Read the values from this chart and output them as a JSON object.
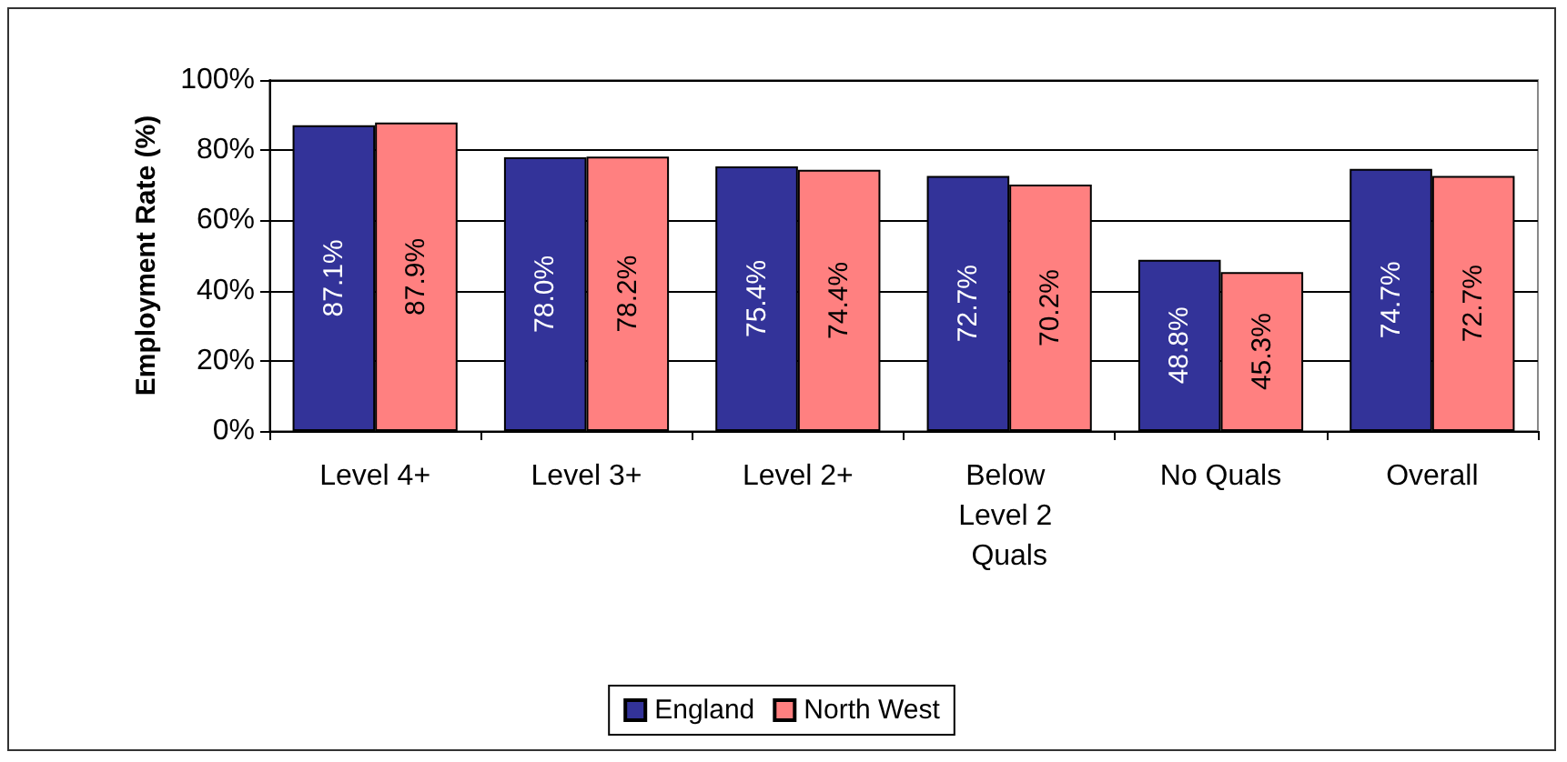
{
  "chart_data": {
    "type": "bar",
    "ylabel": "Employment Rate (%)",
    "categories": [
      "Level 4+",
      "Level 3+",
      "Level 2+",
      "Below Level 2 Quals",
      "No Quals",
      "Overall"
    ],
    "series": [
      {
        "name": "England",
        "color": "#333399",
        "values": [
          87.1,
          78.0,
          75.4,
          72.7,
          48.8,
          74.7
        ],
        "value_labels": [
          "87.1%",
          "78.0%",
          "75.4%",
          "72.7%",
          "48.8%",
          "74.7%"
        ]
      },
      {
        "name": "North West",
        "color": "#ff8080",
        "values": [
          87.9,
          78.2,
          74.4,
          70.2,
          45.3,
          72.7
        ],
        "value_labels": [
          "87.9%",
          "78.2%",
          "74.4%",
          "70.2%",
          "45.3%",
          "72.7%"
        ]
      }
    ],
    "ylim": [
      0,
      100
    ],
    "yticks": [
      {
        "value": 0,
        "label": "0%"
      },
      {
        "value": 20,
        "label": "20%"
      },
      {
        "value": 40,
        "label": "40%"
      },
      {
        "value": 60,
        "label": "60%"
      },
      {
        "value": 80,
        "label": "80%"
      },
      {
        "value": 100,
        "label": "100%"
      }
    ],
    "grid": "y",
    "legend": "bottom"
  }
}
